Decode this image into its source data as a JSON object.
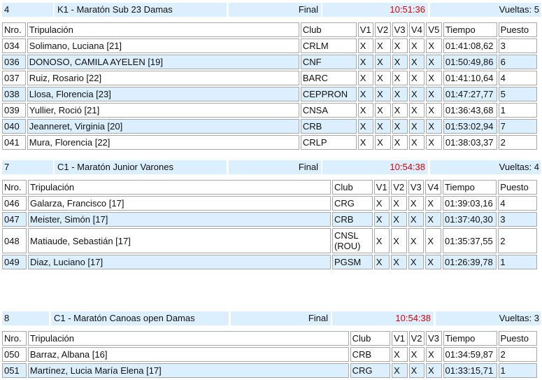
{
  "races": [
    {
      "number": "4",
      "title": "K1 - Maratón Sub 23 Damas",
      "stage": "Final",
      "time": "10:51:36",
      "laps": "Vueltas: 5",
      "columns": [
        "Nro.",
        "Tripulación",
        "Club",
        "V1",
        "V2",
        "V3",
        "V4",
        "V5",
        "Tiempo",
        "Puesto"
      ],
      "rows": [
        [
          "034",
          "Solimano, Luciana [21]",
          "CRLM",
          "X",
          "X",
          "X",
          "X",
          "X",
          "01:41:08,62",
          "3"
        ],
        [
          "036",
          "DONOSO, CAMILA AYELEN [19]",
          "CNF",
          "X",
          "X",
          "X",
          "X",
          "X",
          "01:50:49,86",
          "6"
        ],
        [
          "037",
          "Ruiz, Rosario [22]",
          "BARC",
          "X",
          "X",
          "X",
          "X",
          "X",
          "01:41:10,64",
          "4"
        ],
        [
          "038",
          "Llosa, Florencia [23]",
          "CEPPRON",
          "X",
          "X",
          "X",
          "X",
          "X",
          "01:47:27,77",
          "5"
        ],
        [
          "039",
          "Yullier, Roció [21]",
          "CNSA",
          "X",
          "X",
          "X",
          "X",
          "X",
          "01:36:43,68",
          "1"
        ],
        [
          "040",
          "Jeanneret, Virginia [20]",
          "CRB",
          "X",
          "X",
          "X",
          "X",
          "X",
          "01:53:02,94",
          "7"
        ],
        [
          "041",
          "Mura, Florencia [22]",
          "CRLP",
          "X",
          "X",
          "X",
          "X",
          "X",
          "01:38:03,37",
          "2"
        ]
      ]
    },
    {
      "number": "7",
      "title": "C1 - Maratón Junior Varones",
      "stage": "Final",
      "time": "10:54:38",
      "laps": "Vueltas: 4",
      "columns": [
        "Nro.",
        "Tripulación",
        "Club",
        "V1",
        "V2",
        "V3",
        "V4",
        "Tiempo",
        "Puesto"
      ],
      "rows": [
        [
          "046",
          "Galarza, Francisco [17]",
          "CRG",
          "X",
          "X",
          "X",
          "X",
          "01:39:03,16",
          "4"
        ],
        [
          "047",
          "Meister, Simón [17]",
          "CRB",
          "X",
          "X",
          "X",
          "X",
          "01:37:40,30",
          "3"
        ],
        [
          "048",
          "Matiaude, Sebastián [17]",
          "CNSL (ROU)",
          "X",
          "X",
          "X",
          "X",
          "01:35:37,55",
          "2"
        ],
        [
          "049",
          "Diaz, Luciano [17]",
          "PGSM",
          "X",
          "X",
          "X",
          "X",
          "01:26:39,78",
          "1"
        ]
      ]
    },
    {
      "number": "8",
      "title": "C1 - Maratón Canoas open Damas",
      "stage": "Final",
      "time": "10:54:38",
      "laps": "Vueltas: 3",
      "columns": [
        "Nro.",
        "Tripulación",
        "Club",
        "V1",
        "V2",
        "V3",
        "Tiempo",
        "Puesto"
      ],
      "rows": [
        [
          "050",
          "Barraz, Albana [16]",
          "CRB",
          "X",
          "X",
          "X",
          "01:34:59,87",
          "2"
        ],
        [
          "051",
          "Martínez, Lucia María Elena [17]",
          "CRG",
          "X",
          "X",
          "X",
          "01:33:15,71",
          "1"
        ]
      ]
    }
  ]
}
